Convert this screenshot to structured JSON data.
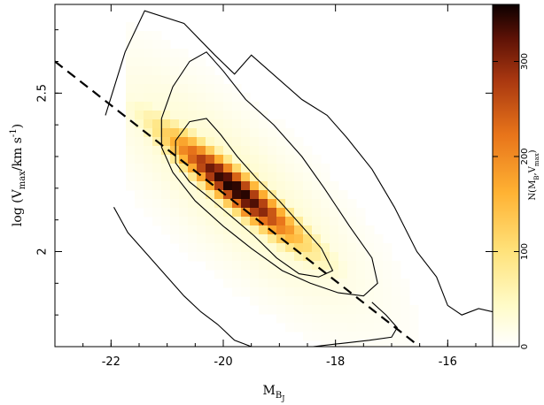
{
  "chart_data": {
    "type": "heatmap",
    "title": "",
    "xlabel_main": "M",
    "xlabel_sub": "B",
    "xlabel_subsub": "J",
    "ylabel_pre": "log (V",
    "ylabel_sub": "max",
    "ylabel_post": "/km s",
    "ylabel_sup": "-1",
    "ylabel_end": ")",
    "xlim": [
      -23,
      -15.2
    ],
    "ylim": [
      1.7,
      2.78
    ],
    "x_ticks": [
      -22,
      -20,
      -18,
      -16
    ],
    "x_tick_labels": [
      "-22",
      "-20",
      "-18",
      "-16"
    ],
    "y_ticks": [
      2.0,
      2.5
    ],
    "y_tick_labels": [
      "2",
      "2.5"
    ],
    "colorbar": {
      "title_pre": "N(M",
      "title_sub": "B",
      "title_mid": ",V",
      "title_sub2": "max",
      "title_end": ")",
      "range": [
        0,
        360
      ],
      "ticks": [
        0,
        100,
        200,
        300
      ],
      "tick_labels": [
        "0",
        "100",
        "200",
        "300"
      ]
    },
    "density_peak": {
      "x": -19.8,
      "y": 2.2,
      "value": 360
    },
    "density_ridge": {
      "slope_dy_dx": -0.135,
      "along_sigma_mag": 0.85,
      "across_sigma_dex": 0.045,
      "extent_mag": [
        -21.2,
        -16.9
      ]
    },
    "contours": [
      {
        "level": "inner",
        "points": [
          [
            -20.85,
            2.35
          ],
          [
            -20.6,
            2.41
          ],
          [
            -20.3,
            2.42
          ],
          [
            -20.05,
            2.37
          ],
          [
            -19.75,
            2.3
          ],
          [
            -19.4,
            2.23
          ],
          [
            -19.0,
            2.16
          ],
          [
            -18.6,
            2.08
          ],
          [
            -18.25,
            2.01
          ],
          [
            -18.05,
            1.94
          ],
          [
            -18.3,
            1.92
          ],
          [
            -18.65,
            1.93
          ],
          [
            -19.05,
            1.98
          ],
          [
            -19.45,
            2.05
          ],
          [
            -19.85,
            2.11
          ],
          [
            -20.25,
            2.17
          ],
          [
            -20.6,
            2.22
          ],
          [
            -20.85,
            2.28
          ],
          [
            -20.85,
            2.35
          ]
        ]
      },
      {
        "level": "middle",
        "points": [
          [
            -21.1,
            2.42
          ],
          [
            -20.9,
            2.52
          ],
          [
            -20.6,
            2.6
          ],
          [
            -20.3,
            2.63
          ],
          [
            -20.0,
            2.57
          ],
          [
            -19.6,
            2.48
          ],
          [
            -19.1,
            2.4
          ],
          [
            -18.6,
            2.3
          ],
          [
            -18.2,
            2.2
          ],
          [
            -17.75,
            2.08
          ],
          [
            -17.35,
            1.98
          ],
          [
            -17.25,
            1.9
          ],
          [
            -17.5,
            1.86
          ],
          [
            -17.95,
            1.87
          ],
          [
            -18.45,
            1.9
          ],
          [
            -18.95,
            1.94
          ],
          [
            -19.5,
            2.01
          ],
          [
            -20.0,
            2.08
          ],
          [
            -20.5,
            2.16
          ],
          [
            -20.9,
            2.25
          ],
          [
            -21.1,
            2.33
          ],
          [
            -21.1,
            2.42
          ]
        ]
      },
      {
        "level": "outer",
        "points": [
          [
            -22.1,
            2.43
          ],
          [
            -21.75,
            2.63
          ],
          [
            -21.4,
            2.76
          ],
          [
            -20.7,
            2.72
          ],
          [
            -20.15,
            2.62
          ],
          [
            -19.8,
            2.56
          ],
          [
            -19.5,
            2.62
          ],
          [
            -19.05,
            2.55
          ],
          [
            -18.6,
            2.48
          ],
          [
            -18.15,
            2.43
          ],
          [
            -17.8,
            2.36
          ],
          [
            -17.35,
            2.26
          ],
          [
            -16.95,
            2.14
          ],
          [
            -16.55,
            2.0
          ],
          [
            -16.2,
            1.92
          ],
          [
            -16.0,
            1.83
          ],
          [
            -15.75,
            1.8
          ],
          [
            -15.45,
            1.82
          ],
          [
            -15.2,
            1.81
          ]
        ]
      },
      {
        "level": "outer-lower",
        "points": [
          [
            -21.95,
            2.14
          ],
          [
            -21.7,
            2.06
          ],
          [
            -21.35,
            1.99
          ],
          [
            -21.05,
            1.93
          ],
          [
            -20.7,
            1.86
          ],
          [
            -20.4,
            1.81
          ],
          [
            -20.1,
            1.77
          ],
          [
            -19.8,
            1.72
          ],
          [
            -19.5,
            1.7
          ]
        ]
      },
      {
        "level": "outer-lower-2",
        "points": [
          [
            -18.4,
            1.7
          ],
          [
            -17.9,
            1.71
          ],
          [
            -17.4,
            1.72
          ],
          [
            -17.0,
            1.73
          ],
          [
            -16.9,
            1.76
          ],
          [
            -17.1,
            1.8
          ],
          [
            -17.35,
            1.84
          ]
        ]
      }
    ],
    "fit_line": {
      "style": "dashed",
      "x": [
        -23.0,
        -16.5
      ],
      "y": [
        2.6,
        1.7
      ]
    }
  }
}
